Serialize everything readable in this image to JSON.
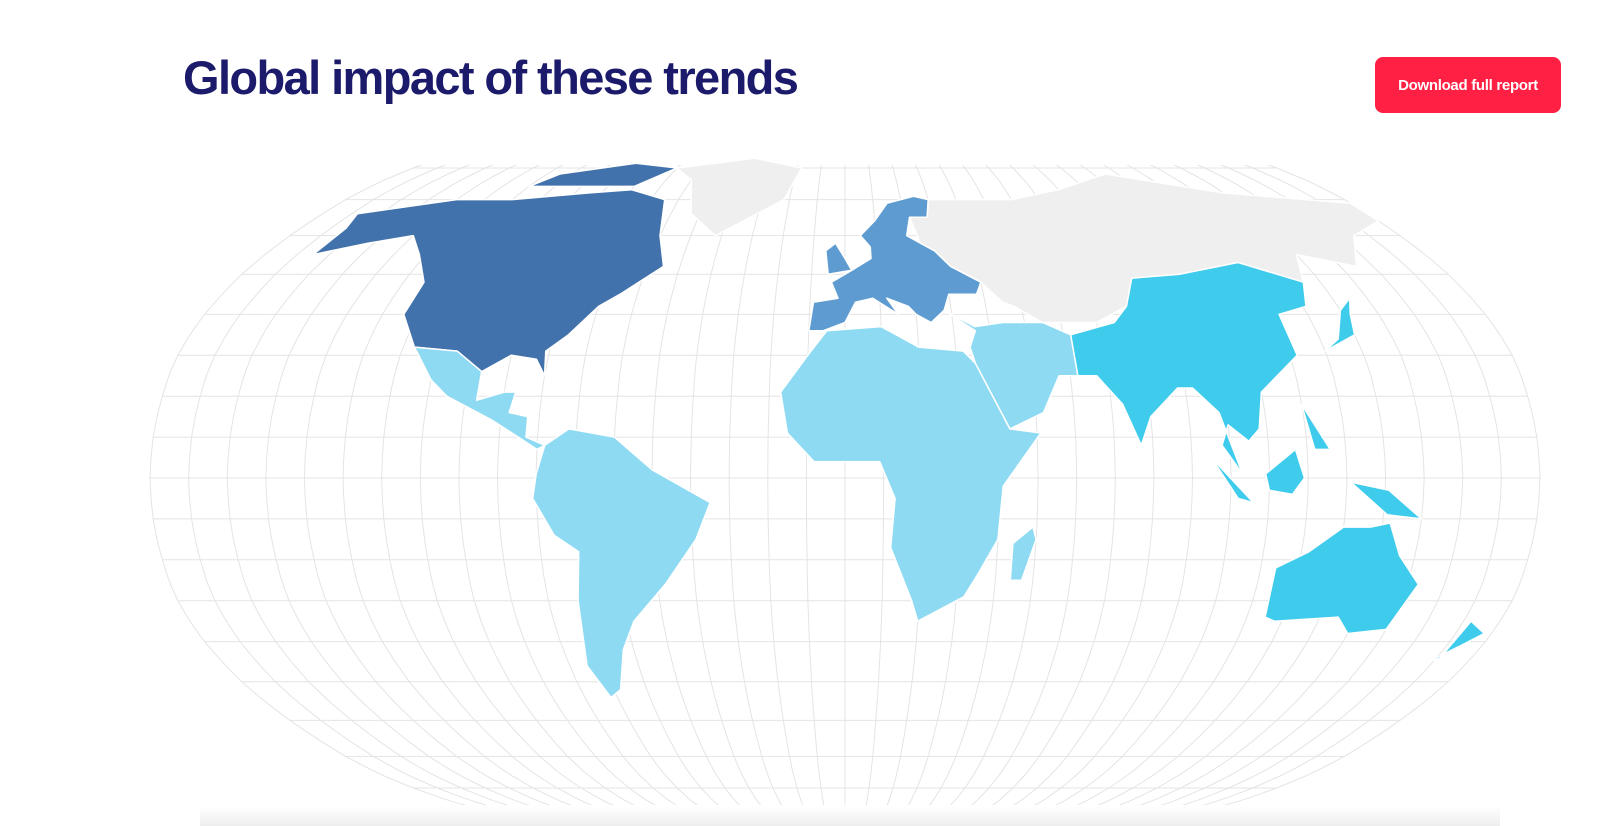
{
  "header": {
    "title": "Global impact of these trends",
    "button": "Download full report"
  }
}
